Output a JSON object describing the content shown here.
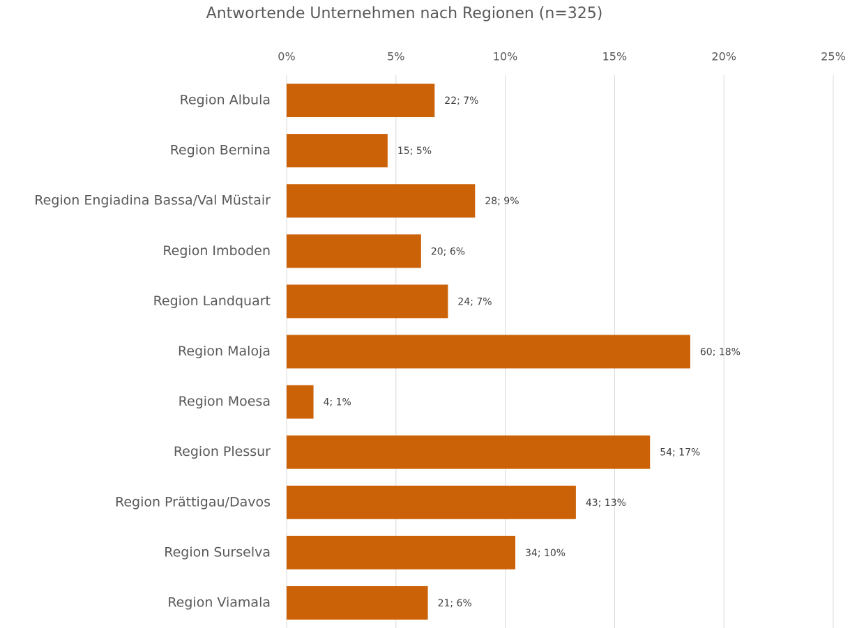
{
  "chart_data": {
    "type": "hbar",
    "title": "Antwortende Unternehmen nach Regionen (n=325)",
    "categories": [
      "Region Albula",
      "Region Bernina",
      "Region Engiadina Bassa/Val Müstair",
      "Region Imboden",
      "Region Landquart",
      "Region Maloja",
      "Region Moesa",
      "Region Plessur",
      "Region Prättigau/Davos",
      "Region Surselva",
      "Region Viamala"
    ],
    "values": [
      6.77,
      4.62,
      8.62,
      6.15,
      7.38,
      18.46,
      1.23,
      16.62,
      13.23,
      10.46,
      6.46
    ],
    "value_labels": [
      "22; 7%",
      "15; 5%",
      "28; 9%",
      "20; 6%",
      "24; 7%",
      "60; 18%",
      "4; 1%",
      "54; 17%",
      "43; 13%",
      "34; 10%",
      "21; 6%"
    ],
    "color": "#cb6208",
    "xlim": [
      0,
      25
    ],
    "xticks": [
      {
        "value": 0,
        "label": "0%"
      },
      {
        "value": 5,
        "label": "5%"
      },
      {
        "value": 10,
        "label": "10%"
      },
      {
        "value": 15,
        "label": "15%"
      },
      {
        "value": 20,
        "label": "20%"
      },
      {
        "value": 25,
        "label": "25%"
      }
    ],
    "grid": true
  }
}
